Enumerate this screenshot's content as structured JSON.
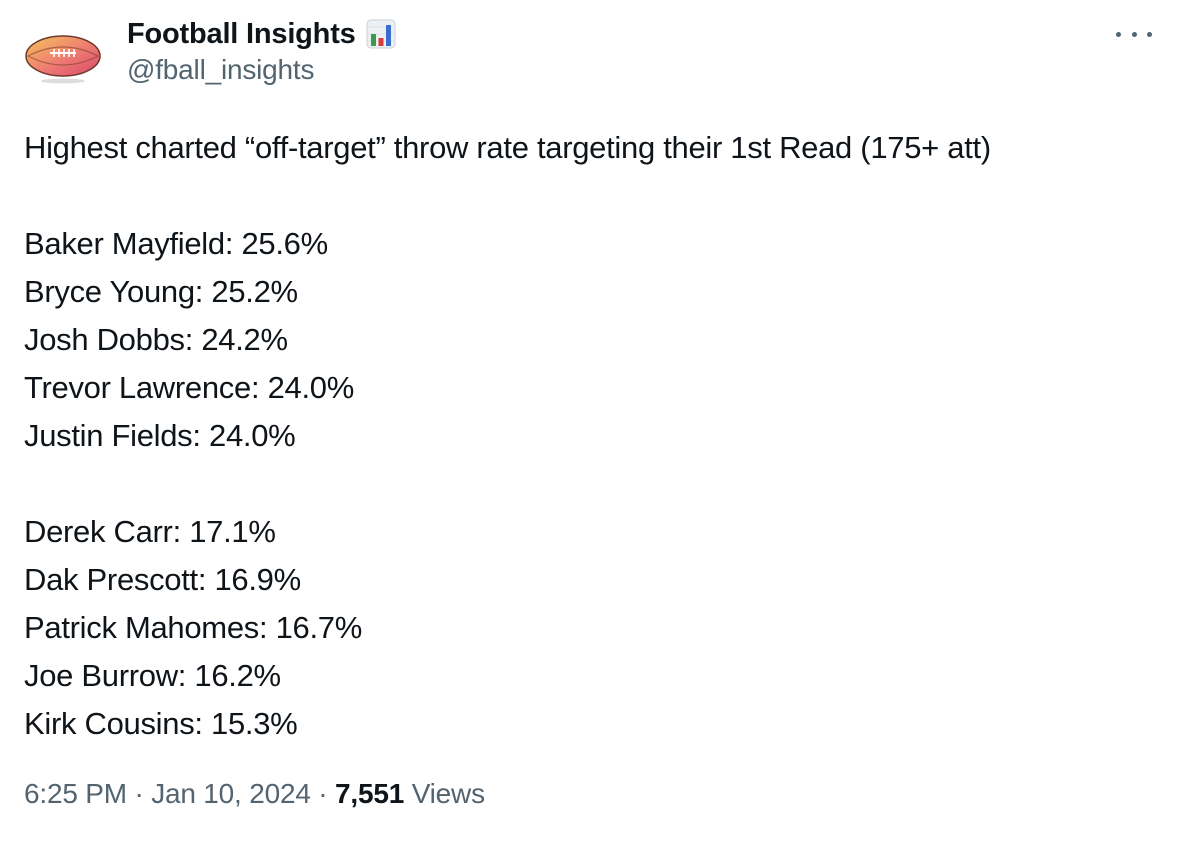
{
  "author": {
    "display_name": "Football Insights",
    "handle": "@fball_insights",
    "badge_icon": "bar-chart-emoji",
    "avatar_icon": "football-logo"
  },
  "menu": {
    "more_icon": "more-horizontal-icon"
  },
  "tweet": {
    "heading": "Highest charted “off-target” throw rate targeting their 1st Read (175+ att)",
    "group_high": [
      "Baker Mayfield: 25.6%",
      "Bryce Young: 25.2%",
      "Josh Dobbs: 24.2%",
      "Trevor Lawrence: 24.0%",
      "Justin Fields: 24.0%"
    ],
    "group_low": [
      "Derek Carr: 17.1%",
      "Dak Prescott: 16.9%",
      "Patrick Mahomes: 16.7%",
      "Joe Burrow: 16.2%",
      "Kirk Cousins: 15.3%"
    ]
  },
  "meta": {
    "time": "6:25 PM",
    "separator": " · ",
    "date": "Jan 10, 2024",
    "views_count": "7,551",
    "views_label": "Views"
  }
}
